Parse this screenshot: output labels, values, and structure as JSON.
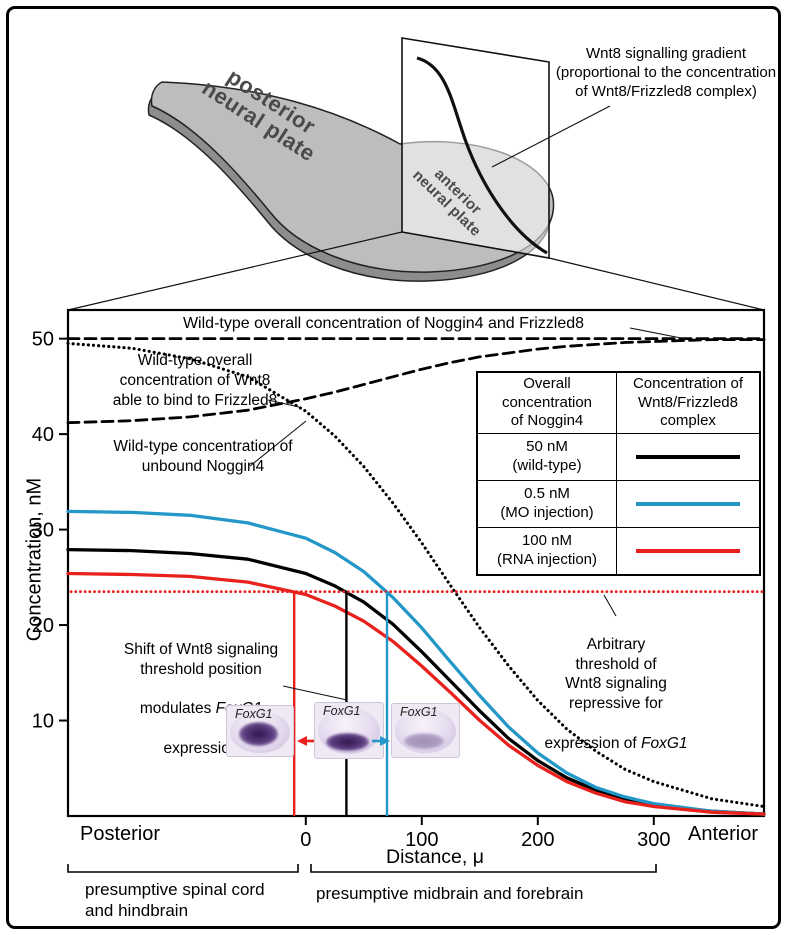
{
  "diagram": {
    "posterior_label": "posterior\nneural plate",
    "anterior_label": "anterior\nneural plate",
    "gradient_caption": "Wnt8 signalling gradient\n(proportional to the concentration\nof Wnt8/Frizzled8 complex)"
  },
  "chart_data": {
    "type": "line",
    "xlabel": "Distance, μ",
    "ylabel": "Concentration, nM",
    "x_axis_end_labels": {
      "left": "Posterior",
      "right": "Anterior"
    },
    "xlim": [
      -205,
      395
    ],
    "ylim": [
      0,
      53
    ],
    "x_ticks": [
      0,
      100,
      200,
      300
    ],
    "y_ticks": [
      50,
      40,
      30,
      20,
      10
    ],
    "grid": false,
    "legend_position": "upper right",
    "x": [
      -205,
      -150,
      -100,
      -50,
      0,
      25,
      50,
      75,
      100,
      125,
      150,
      175,
      200,
      225,
      250,
      275,
      300,
      350,
      395
    ],
    "series": [
      {
        "name": "Wild-type overall concentration of Noggin4 and Frizzled8",
        "style": "dashed",
        "color": "#000000",
        "values": [
          50,
          50,
          50,
          50,
          50,
          50,
          50,
          50,
          50,
          50,
          50,
          50,
          50,
          50,
          50,
          50,
          50,
          50,
          50
        ]
      },
      {
        "name": "Wild-type overall concentration of Wnt8 able to bind to Frizzled8",
        "style": "dotted",
        "color": "#000000",
        "values": [
          49.5,
          49,
          47.9,
          46,
          42.4,
          39.8,
          36.6,
          32.8,
          28.6,
          24.1,
          19.7,
          15.7,
          12.1,
          9.1,
          6.8,
          4.9,
          3.6,
          1.8,
          1
        ]
      },
      {
        "name": "Wild-type concentration of unbound Noggin4",
        "style": "dashed",
        "color": "#000000",
        "values": [
          41.2,
          41.4,
          41.8,
          42.5,
          43.7,
          44.4,
          45.2,
          46,
          46.8,
          47.5,
          48.1,
          48.5,
          48.9,
          49.2,
          49.4,
          49.6,
          49.7,
          49.9,
          49.9
        ]
      },
      {
        "name": "Wnt8/Frizzled8 complex at Noggin4 50 nM (wild-type)",
        "style": "solid",
        "color": "#000000",
        "values": [
          27.9,
          27.8,
          27.5,
          26.9,
          25.4,
          24.1,
          22.4,
          20.1,
          17.2,
          14.1,
          11,
          8.1,
          5.8,
          4,
          2.7,
          1.7,
          1.1,
          0.5,
          0.2
        ]
      },
      {
        "name": "Wnt8/Frizzled8 complex at Noggin4 0.5 nM (MO injection)",
        "style": "solid",
        "color": "#2397c8",
        "values": [
          31.9,
          31.8,
          31.5,
          30.7,
          29.1,
          27.6,
          25.6,
          22.9,
          19.7,
          16.1,
          12.6,
          9.3,
          6.6,
          4.5,
          3,
          2,
          1.3,
          0.5,
          0.2
        ]
      },
      {
        "name": "Wnt8/Frizzled8 complex at Noggin4 100 nM (RNA injection)",
        "style": "solid",
        "color": "#e8211c",
        "values": [
          25.4,
          25.3,
          25.1,
          24.5,
          23.2,
          22,
          20.4,
          18.3,
          15.7,
          12.9,
          10,
          7.4,
          5.3,
          3.6,
          2.4,
          1.5,
          1,
          0.4,
          0.2
        ]
      }
    ],
    "threshold_line": {
      "value": 23.5,
      "style": "dotted",
      "color": "#e8211c",
      "name": "Arbitrary threshold of Wnt8 signaling repressive for expression of FoxG1"
    },
    "marker_lines": [
      {
        "x": -10,
        "y_top": 23.5,
        "color": "#e8211c"
      },
      {
        "x": 35,
        "y_top": 23.5,
        "color": "#000000"
      },
      {
        "x": 70,
        "y_top": 23.5,
        "color": "#2397c8"
      }
    ]
  },
  "plot_annotations": {
    "top_line_label": "Wild-type overall concentration of Noggin4 and Frizzled8",
    "wnt8_note": "Wild-type overall\nconcentration of Wnt8\nable to bind to Frizzled8",
    "noggin_note": "Wild-type concentration of\nunbound Noggin4",
    "shift_head": "Shift of Wnt8 signaling\nthreshold position",
    "shift_mid_pre": "modulates ",
    "shift_italic": "FoxG1",
    "shift_tail": "expression",
    "threshold_head": "Arbitrary\nthreshold of\nWnt8 signaling\nrepressive for",
    "threshold_tail_pre": "expression of ",
    "threshold_italic": "FoxG1"
  },
  "legend": {
    "header_col1": "Overall\nconcentration\nof Noggin4",
    "header_col2": "Concentration of\nWnt8/Frizzled8\ncomplex",
    "rows": [
      {
        "label": "50 nM\n(wild-type)",
        "color": "#000000"
      },
      {
        "label": "0.5 nM\n(MO injection)",
        "color": "#2397c8"
      },
      {
        "label": "100 nM\n(RNA injection)",
        "color": "#e8211c"
      }
    ]
  },
  "embryos": [
    {
      "label": "FoxG1"
    },
    {
      "label": "FoxG1"
    },
    {
      "label": "FoxG1"
    }
  ],
  "shift_arrows": [
    {
      "direction": "left",
      "color": "#e8211c"
    },
    {
      "direction": "right",
      "color": "#2397c8"
    }
  ],
  "regions": {
    "left": "presumptive spinal cord\nand hindbrain",
    "right": "presumptive midbrain and forebrain"
  }
}
